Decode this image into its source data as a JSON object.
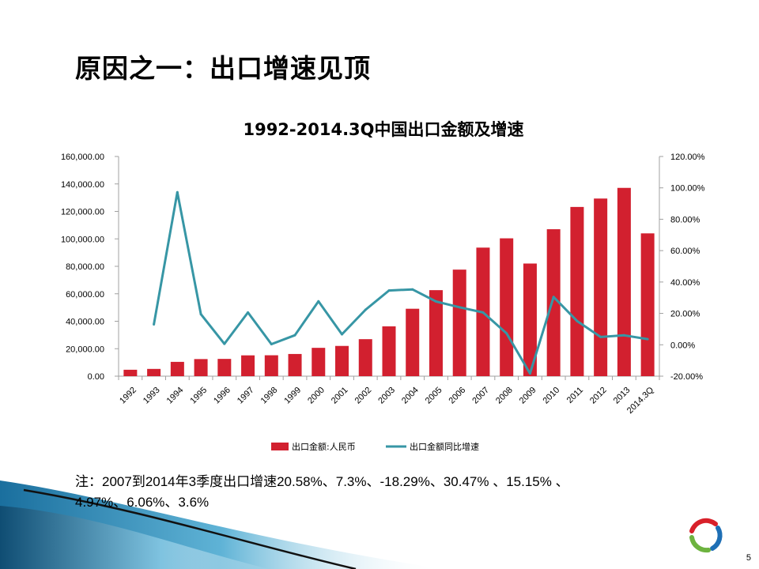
{
  "slide": {
    "title": "原因之一：出口增速见顶",
    "page_number": "5"
  },
  "note": {
    "line1": "注：2007到2014年3季度出口增速20.58%、7.3%、-18.29%、30.47% 、15.15% 、",
    "line2": "4.97%、6.06%、3.6%"
  },
  "colors": {
    "bar": "#d2202f",
    "line": "#3796a5",
    "axis": "#a0a0a0"
  },
  "chart_data": {
    "type": "bar",
    "title": "1992-2014.3Q中国出口金额及增速",
    "categories": [
      "1992",
      "1993",
      "1994",
      "1995",
      "1996",
      "1997",
      "1998",
      "1999",
      "2000",
      "2001",
      "2002",
      "2003",
      "2004",
      "2005",
      "2006",
      "2007",
      "2008",
      "2009",
      "2010",
      "2011",
      "2012",
      "2013",
      "2014.3Q"
    ],
    "series": [
      {
        "name": "出口金额:人民币",
        "type": "bar",
        "axis": "left",
        "values": [
          4676,
          5285,
          10422,
          12452,
          12576,
          15161,
          15224,
          16160,
          20634,
          22024,
          26948,
          36288,
          49103,
          62648,
          77597,
          93627,
          100395,
          82030,
          107023,
          123241,
          129359,
          137131,
          104000
        ]
      },
      {
        "name": "出口金额同比增速",
        "type": "line",
        "axis": "right",
        "values": [
          null,
          13.0,
          97.2,
          19.5,
          0.6,
          20.6,
          0.4,
          6.1,
          27.7,
          6.7,
          22.3,
          34.6,
          35.3,
          27.6,
          23.9,
          20.58,
          7.3,
          -18.29,
          30.47,
          15.15,
          4.97,
          6.06,
          3.6
        ]
      }
    ],
    "y_left": {
      "min": 0,
      "max": 160000,
      "step": 20000,
      "tick_labels": [
        "0.00",
        "20,000.00",
        "40,000.00",
        "60,000.00",
        "80,000.00",
        "100,000.00",
        "120,000.00",
        "140,000.00",
        "160,000.00"
      ]
    },
    "y_right": {
      "min": -20,
      "max": 120,
      "step": 20,
      "tick_labels": [
        "-20.00%",
        "0.00%",
        "20.00%",
        "40.00%",
        "60.00%",
        "80.00%",
        "100.00%",
        "120.00%"
      ]
    },
    "legend_position": "bottom",
    "grid": false
  }
}
